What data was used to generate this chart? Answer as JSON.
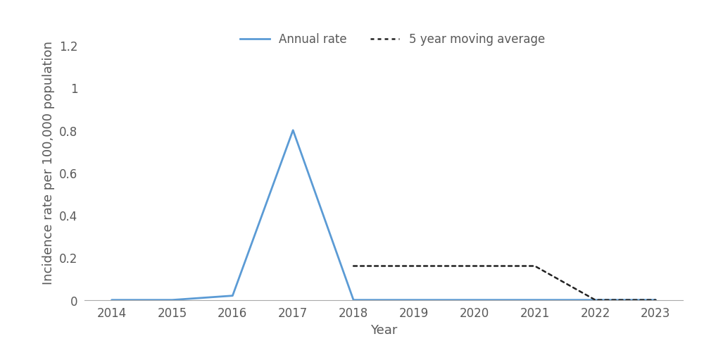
{
  "years": [
    2014,
    2015,
    2016,
    2017,
    2018,
    2019,
    2020,
    2021,
    2022,
    2023
  ],
  "annual_rate": [
    0.0,
    0.0,
    0.02,
    0.8,
    0.0,
    0.0,
    0.0,
    0.0,
    0.0,
    0.0
  ],
  "moving_avg_years": [
    2018,
    2019,
    2020,
    2021,
    2021.5,
    2022,
    2023
  ],
  "moving_avg": [
    0.16,
    0.16,
    0.16,
    0.16,
    0.08,
    0.0,
    0.0
  ],
  "annual_color": "#5B9BD5",
  "moving_avg_color": "#222222",
  "xlabel": "Year",
  "ylabel": "Incidence rate per 100,000 population",
  "ylim": [
    0,
    1.3
  ],
  "ytick_values": [
    0,
    0.2,
    0.4,
    0.6,
    0.8,
    1.0,
    1.2
  ],
  "ytick_labels": [
    "0",
    "0.2",
    "0.4",
    "0.6",
    "0.8",
    "1",
    "1.2"
  ],
  "legend_annual": "Annual rate",
  "legend_moving": "5 year moving average",
  "background_color": "#ffffff",
  "axis_fontsize": 13,
  "tick_fontsize": 12,
  "label_color": "#595959"
}
